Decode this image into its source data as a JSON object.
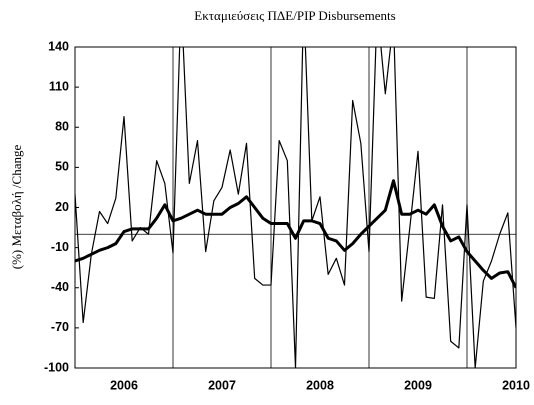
{
  "chart_data": {
    "type": "line",
    "title": "Εκταμιεύσεις ΠΔΕ/PIP Disbursements",
    "y_label": "(%) Μεταβολή /Change",
    "categories": [
      null,
      null,
      null,
      null,
      null,
      null,
      "2006",
      null,
      null,
      null,
      null,
      null,
      null,
      null,
      null,
      null,
      null,
      null,
      "2007",
      null,
      null,
      null,
      null,
      null,
      null,
      null,
      null,
      null,
      null,
      null,
      "2008",
      null,
      null,
      null,
      null,
      null,
      null,
      null,
      null,
      null,
      null,
      null,
      "2009",
      null,
      null,
      null,
      null,
      null,
      null,
      null,
      null,
      null,
      null,
      null,
      "2010"
    ],
    "series": [
      {
        "color": "#000000",
        "values": [
          30,
          -66,
          -15,
          17,
          8,
          27,
          88,
          -5,
          5,
          0,
          55,
          38,
          -14,
          175,
          38,
          70,
          -13,
          25,
          35,
          63,
          30,
          68,
          -33,
          -38,
          -38,
          70,
          55,
          -100,
          175,
          10,
          28,
          -30,
          -18,
          -38,
          100,
          68,
          -13,
          170,
          105,
          160,
          -50,
          5,
          62,
          -47,
          -48,
          22,
          -80,
          -85,
          22,
          -100,
          -35,
          -20,
          0,
          16,
          -70
        ]
      },
      {
        "color": "#000000",
        "values": [
          -20,
          -18,
          -15,
          -12,
          -10,
          -7,
          2,
          4,
          4,
          4,
          12,
          22,
          10,
          12,
          15,
          18,
          15,
          15,
          15,
          20,
          23,
          28,
          20,
          12,
          8,
          8,
          8,
          -3,
          10,
          10,
          8,
          -3,
          -5,
          -12,
          -7,
          0,
          6,
          12,
          18,
          40,
          15,
          15,
          18,
          15,
          22,
          6,
          -5,
          -2,
          -13,
          -20,
          -27,
          -33,
          -29,
          -28,
          -40
        ]
      }
    ],
    "line_widths": [
      1.2,
      3
    ],
    "ylim": [
      -100,
      140
    ],
    "yticks": [
      -100,
      -70,
      -40,
      -10,
      20,
      50,
      80,
      110,
      140
    ],
    "reference_line": 0,
    "year_separators": true
  }
}
